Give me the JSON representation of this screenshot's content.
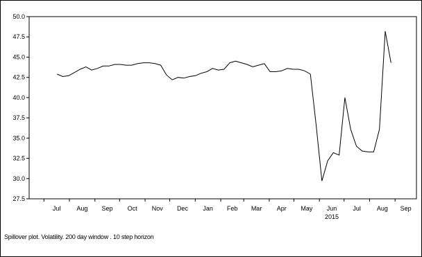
{
  "chart_data": {
    "type": "line",
    "title": "",
    "xlabel": "",
    "ylabel": "",
    "ylim": [
      27.5,
      50.0
    ],
    "yticks": [
      "27.5",
      "30.0",
      "32.5",
      "35.0",
      "37.5",
      "40.0",
      "42.5",
      "45.0",
      "47.5",
      "50.0"
    ],
    "xticks": [
      {
        "label": "Jul",
        "date": "2014-07-01"
      },
      {
        "label": "Aug",
        "date": "2014-08-01"
      },
      {
        "label": "Sep",
        "date": "2014-09-01"
      },
      {
        "label": "Oct",
        "date": "2014-10-01"
      },
      {
        "label": "Nov",
        "date": "2014-11-01"
      },
      {
        "label": "Dec",
        "date": "2014-12-01"
      },
      {
        "label": "Jan",
        "date": "2015-01-01"
      },
      {
        "label": "Feb",
        "date": "2015-02-01"
      },
      {
        "label": "Mar",
        "date": "2015-03-01"
      },
      {
        "label": "Apr",
        "date": "2015-04-01"
      },
      {
        "label": "May",
        "date": "2015-05-01"
      },
      {
        "label": "Jun",
        "date": "2015-06-01"
      },
      {
        "label": "Jul",
        "date": "2015-07-01"
      },
      {
        "label": "Aug",
        "date": "2015-08-01"
      },
      {
        "label": "Sep",
        "date": "2015-09-01"
      }
    ],
    "year_label": "2015",
    "year_label_date": "2015-06-01",
    "xlim": [
      "2014-06-13",
      "2015-09-27"
    ],
    "grid": false,
    "legend": "none",
    "line_color": "#000000",
    "series": [
      {
        "x": [
          "2014-07-17",
          "2014-07-24",
          "2014-07-31",
          "2014-08-07",
          "2014-08-14",
          "2014-08-21",
          "2014-08-28",
          "2014-09-04",
          "2014-09-11",
          "2014-09-18",
          "2014-09-25",
          "2014-10-02",
          "2014-10-09",
          "2014-10-16",
          "2014-10-23",
          "2014-10-30",
          "2014-11-06",
          "2014-11-13",
          "2014-11-20",
          "2014-11-27",
          "2014-12-04",
          "2014-12-11",
          "2014-12-18",
          "2014-12-25",
          "2015-01-01",
          "2015-01-08",
          "2015-01-15",
          "2015-01-22",
          "2015-01-29",
          "2015-02-05",
          "2015-02-12",
          "2015-02-19",
          "2015-02-26",
          "2015-03-05",
          "2015-03-12",
          "2015-03-19",
          "2015-03-26",
          "2015-04-02",
          "2015-04-09",
          "2015-04-16",
          "2015-04-23",
          "2015-04-30",
          "2015-05-07",
          "2015-05-14",
          "2015-05-21",
          "2015-05-28",
          "2015-06-04",
          "2015-06-11",
          "2015-06-18",
          "2015-06-25",
          "2015-07-02",
          "2015-07-09",
          "2015-07-16",
          "2015-07-23",
          "2015-07-30",
          "2015-08-06",
          "2015-08-13",
          "2015-08-20",
          "2015-08-27"
        ],
        "y": [
          42.9,
          42.6,
          42.7,
          43.1,
          43.5,
          43.8,
          43.4,
          43.6,
          43.9,
          43.9,
          44.1,
          44.1,
          44.0,
          44.0,
          44.2,
          44.3,
          44.3,
          44.2,
          44.0,
          42.8,
          42.2,
          42.5,
          42.4,
          42.6,
          42.7,
          43.0,
          43.2,
          43.6,
          43.4,
          43.5,
          44.3,
          44.5,
          44.3,
          44.1,
          43.8,
          44.0,
          44.2,
          43.2,
          43.2,
          43.3,
          43.6,
          43.5,
          43.5,
          43.3,
          42.9,
          36.6,
          29.7,
          32.2,
          33.2,
          32.9,
          40.0,
          36.1,
          34.0,
          33.4,
          33.3,
          33.3,
          36.1,
          48.2,
          44.3
        ]
      }
    ]
  },
  "caption": "Spillover plot. Volatility. 200 day window . 10 step horizon"
}
